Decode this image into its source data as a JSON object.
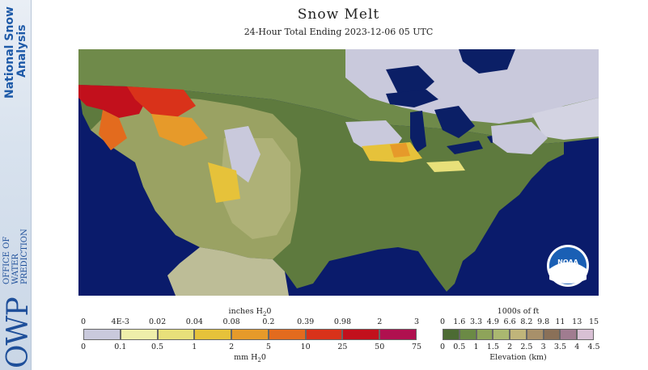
{
  "sidebar": {
    "title_line1": "National Snow",
    "title_line2": "Analysis",
    "owp_logo": "OWP",
    "owp_name_1": "OFFICE OF",
    "owp_name_2": "WATER",
    "owp_name_3": "PREDICTION"
  },
  "header": {
    "title": "Snow Melt",
    "subtitle": "24-Hour Total Ending 2023-12-06 05 UTC"
  },
  "map": {
    "ocean_color": "#0a1b6b",
    "lake_color": "#0b1f66",
    "nodata_land_color": "#bdbd97",
    "noaa_logo_text": "NOAA",
    "features": [
      "Pacific Northwest melt (red/orange)",
      "Northern Rockies melt",
      "Great Lakes snow cover",
      "Northeast snow cover"
    ]
  },
  "melt_legend": {
    "unit_top_prefix": "inches H",
    "unit_top_sub": "2",
    "unit_top_suffix": "0",
    "unit_bottom_prefix": "mm H",
    "unit_bottom_sub": "2",
    "unit_bottom_suffix": "0",
    "inch_labels": [
      "0",
      "4E-3",
      "0.02",
      "0.04",
      "0.08",
      "0.2",
      "0.39",
      "0.98",
      "2",
      "3"
    ],
    "mm_labels": [
      "0",
      "0.1",
      "0.5",
      "1",
      "2",
      "5",
      "10",
      "25",
      "50",
      "75"
    ],
    "colors": [
      "#c9c9dc",
      "#eeeeaa",
      "#e8e07a",
      "#e6c23a",
      "#e69a2a",
      "#e36b1e",
      "#d9321a",
      "#c2101c",
      "#b0104f"
    ]
  },
  "elev_legend": {
    "title": "1000s of ft",
    "caption": "Elevation (km)",
    "ft_labels": [
      "0",
      "1.6",
      "3.3",
      "4.9",
      "6.6",
      "8.2",
      "9.8",
      "11",
      "13",
      "15"
    ],
    "km_labels": [
      "0",
      "0.5",
      "1",
      "1.5",
      "2",
      "2.5",
      "3",
      "3.5",
      "4",
      "4.5"
    ],
    "colors": [
      "#4c6b33",
      "#6b8a45",
      "#8ea45a",
      "#aab870",
      "#c0b57a",
      "#a8906a",
      "#8a7058",
      "#a07c90",
      "#d8c0d4"
    ]
  }
}
